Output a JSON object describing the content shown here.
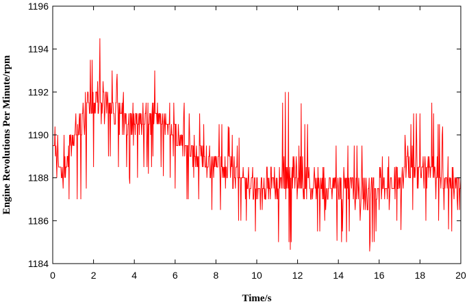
{
  "chart_data": {
    "type": "line",
    "title": "",
    "xlabel": "Time/s",
    "ylabel": "Engine Revolutions Per Minute/rpm",
    "xlim": [
      0,
      20
    ],
    "ylim": [
      1184,
      1196
    ],
    "xticks": [
      0,
      2,
      4,
      6,
      8,
      10,
      12,
      14,
      16,
      18,
      20
    ],
    "xtick_labels": [
      "0",
      "2",
      "4",
      "6",
      "8",
      "10",
      "12",
      "14",
      "16",
      "18",
      "20"
    ],
    "yticks": [
      1184,
      1186,
      1188,
      1190,
      1192,
      1194,
      1196
    ],
    "ytick_labels": [
      "1184",
      "1186",
      "1188",
      "1190",
      "1192",
      "1194",
      "1196"
    ],
    "grid": false,
    "legend": "none",
    "series": [
      {
        "color": "#ff0000",
        "x": [
          0.0,
          0.5,
          1.0,
          1.5,
          2.0,
          2.5,
          3.0,
          3.5,
          4.0,
          4.5,
          5.0,
          5.5,
          6.0,
          6.5,
          7.0,
          7.5,
          8.0,
          8.5,
          9.0,
          9.5,
          10.0,
          10.5,
          11.0,
          11.5,
          12.0,
          12.5,
          13.0,
          13.5,
          14.0,
          14.5,
          15.0,
          15.5,
          16.0,
          16.5,
          17.0,
          17.5,
          18.0,
          18.5,
          19.0,
          19.5,
          20.0
        ],
        "y": [
          1189.5,
          1188.0,
          1190.0,
          1191.0,
          1191.5,
          1191.5,
          1191.0,
          1191.0,
          1190.5,
          1190.5,
          1191.0,
          1190.5,
          1190.0,
          1189.5,
          1189.0,
          1188.8,
          1188.5,
          1188.3,
          1188.0,
          1187.8,
          1187.5,
          1187.7,
          1187.5,
          1188.0,
          1188.0,
          1187.5,
          1187.5,
          1187.5,
          1187.6,
          1187.7,
          1187.5,
          1187.5,
          1187.5,
          1187.6,
          1188.0,
          1188.5,
          1188.5,
          1188.5,
          1188.0,
          1188.0,
          1187.5
        ],
        "min": [
          1186.5,
          1186.5,
          1187.0,
          1186.5,
          1188.5,
          1189.0,
          1188.5,
          1188.0,
          1187.5,
          1188.0,
          1188.5,
          1188.0,
          1187.5,
          1187.0,
          1187.0,
          1186.5,
          1186.5,
          1186.0,
          1185.5,
          1185.5,
          1185.0,
          1185.0,
          1185.0,
          1184.5,
          1185.0,
          1185.0,
          1185.0,
          1185.5,
          1185.0,
          1185.0,
          1184.0,
          1184.5,
          1185.5,
          1186.0,
          1185.5,
          1186.0,
          1186.0,
          1185.5,
          1186.0,
          1185.5,
          1184.5
        ],
        "max": [
          1190.5,
          1190.0,
          1192.5,
          1192.5,
          1194.0,
          1195.0,
          1193.0,
          1192.5,
          1192.5,
          1193.0,
          1193.0,
          1192.0,
          1191.5,
          1191.5,
          1191.0,
          1191.0,
          1190.5,
          1190.5,
          1190.0,
          1189.5,
          1190.0,
          1189.5,
          1190.5,
          1192.5,
          1192.0,
          1190.5,
          1190.5,
          1189.5,
          1190.0,
          1190.0,
          1190.0,
          1189.0,
          1189.0,
          1189.5,
          1190.0,
          1191.0,
          1191.0,
          1192.0,
          1190.5,
          1190.0,
          1189.5
        ]
      }
    ]
  }
}
